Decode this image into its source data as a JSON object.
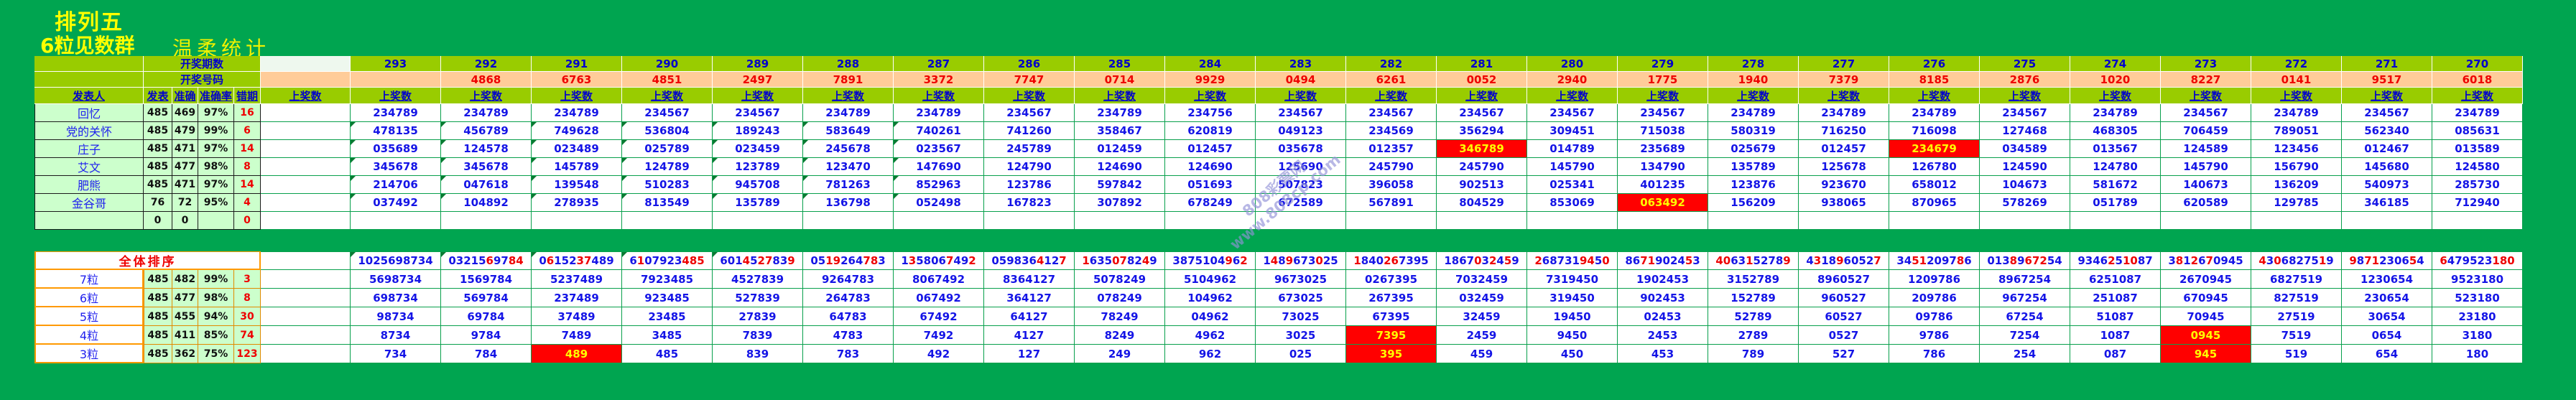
{
  "title": {
    "line1": "排列五",
    "line2": "6粒见数群",
    "subtitle": "温柔统计"
  },
  "labels": {
    "period_row": "开奖期数",
    "number_row": "开奖号码",
    "publisher": "发表人",
    "published": "发表",
    "accurate": "准确",
    "accuracy_rate": "准确率",
    "missed": "错期",
    "win_numbers": "上奖数",
    "overall": "全体排序"
  },
  "periods": [
    "293",
    "292",
    "291",
    "290",
    "289",
    "288",
    "287",
    "286",
    "285",
    "284",
    "283",
    "282",
    "281",
    "280",
    "279",
    "278",
    "277",
    "276",
    "275",
    "274",
    "273",
    "272",
    "271",
    "270"
  ],
  "draw_numbers": [
    "",
    "4868",
    "6763",
    "4851",
    "2497",
    "7891",
    "3372",
    "7747",
    "0714",
    "9929",
    "0494",
    "6261",
    "0052",
    "2940",
    "1775",
    "1940",
    "7379",
    "8185",
    "2876",
    "1020",
    "8227",
    "0141",
    "9517",
    "6018"
  ],
  "publishers": [
    {
      "name": "回忆",
      "published": "485",
      "accurate": "469",
      "rate": "97%",
      "missed": "16",
      "red_cols": [],
      "cells": [
        "234789",
        "234789",
        "234789",
        "234567",
        "234567",
        "234789",
        "234789",
        "234567",
        "234789",
        "234756",
        "234567",
        "234567",
        "234567",
        "234567",
        "234567",
        "234789",
        "234789",
        "234789",
        "234567",
        "234789",
        "234567",
        "234789",
        "234567",
        "234789"
      ]
    },
    {
      "name": "党的关怀",
      "published": "485",
      "accurate": "479",
      "rate": "99%",
      "missed": "6",
      "red_cols": [],
      "cells": [
        "478135",
        "456789",
        "749628",
        "536804",
        "189243",
        "583649",
        "740261",
        "741260",
        "358467",
        "620819",
        "049123",
        "234569",
        "356294",
        "309451",
        "715038",
        "580319",
        "716250",
        "716098",
        "127468",
        "468305",
        "706459",
        "789051",
        "562340",
        "085631"
      ]
    },
    {
      "name": "庄子",
      "published": "485",
      "accurate": "471",
      "rate": "97%",
      "missed": "14",
      "red_cols": [
        "281",
        "276"
      ],
      "cells": [
        "035689",
        "124578",
        "023489",
        "025789",
        "023459",
        "245678",
        "023567",
        "245789",
        "012459",
        "012457",
        "035678",
        "012357",
        "346789",
        "014789",
        "235689",
        "025679",
        "012457",
        "234679",
        "034589",
        "013567",
        "124589",
        "123456",
        "012467",
        "013589"
      ]
    },
    {
      "name": "艾文",
      "published": "485",
      "accurate": "477",
      "rate": "98%",
      "missed": "8",
      "red_cols": [],
      "cells": [
        "345678",
        "345678",
        "145789",
        "124789",
        "123789",
        "123470",
        "147690",
        "124790",
        "124690",
        "124690",
        "125690",
        "245790",
        "245790",
        "145790",
        "134790",
        "135789",
        "125678",
        "126780",
        "124590",
        "124780",
        "145790",
        "156790",
        "145680",
        "124580"
      ]
    },
    {
      "name": "肥熊",
      "published": "485",
      "accurate": "471",
      "rate": "97%",
      "missed": "14",
      "red_cols": [],
      "cells": [
        "214706",
        "047618",
        "139548",
        "510283",
        "945708",
        "781263",
        "852963",
        "123786",
        "597842",
        "051693",
        "507823",
        "396058",
        "902513",
        "025341",
        "401235",
        "123876",
        "923670",
        "658012",
        "104673",
        "581672",
        "140673",
        "136209",
        "540973",
        "285730"
      ]
    },
    {
      "name": "金谷哥",
      "published": "76",
      "accurate": "72",
      "rate": "95%",
      "missed": "4",
      "red_cols": [
        "279"
      ],
      "cells": [
        "037492",
        "104892",
        "278935",
        "813549",
        "135789",
        "136798",
        "052498",
        "167823",
        "307892",
        "678249",
        "672589",
        "567891",
        "804529",
        "853069",
        "063492",
        "156209",
        "938065",
        "870965",
        "578269",
        "051789",
        "620589",
        "129785",
        "346185",
        "712940"
      ]
    }
  ],
  "blank_row": {
    "name": "",
    "published": "0",
    "accurate": "0",
    "rate": "",
    "missed": "0"
  },
  "overall_row": {
    "cells": [
      "1025698734",
      "0321569784",
      "0615237489",
      "6107923485",
      "6014527839",
      "0519264783",
      "1358067492",
      "0598364127",
      "1635078249",
      "3875104962",
      "1489673025",
      "1840267395",
      "1867032459",
      "2687319450",
      "8671902453",
      "4063152789",
      "4318960527",
      "3451209786",
      "0138967254",
      "9346251087",
      "3812670945",
      "4306827519",
      "9871230654",
      "6479523180"
    ]
  },
  "particle_rows": [
    {
      "name": "7粒",
      "published": "485",
      "accurate": "482",
      "rate": "99%",
      "missed": "3",
      "red_cols": [],
      "cells": [
        "5698734",
        "1569784",
        "5237489",
        "7923485",
        "4527839",
        "9264783",
        "8067492",
        "8364127",
        "5078249",
        "5104962",
        "9673025",
        "0267395",
        "7032459",
        "7319450",
        "1902453",
        "3152789",
        "8960527",
        "1209786",
        "8967254",
        "6251087",
        "2670945",
        "6827519",
        "1230654",
        "9523180"
      ]
    },
    {
      "name": "6粒",
      "published": "485",
      "accurate": "477",
      "rate": "98%",
      "missed": "8",
      "red_cols": [],
      "cells": [
        "698734",
        "569784",
        "237489",
        "923485",
        "527839",
        "264783",
        "067492",
        "364127",
        "078249",
        "104962",
        "673025",
        "267395",
        "032459",
        "319450",
        "902453",
        "152789",
        "960527",
        "209786",
        "967254",
        "251087",
        "670945",
        "827519",
        "230654",
        "523180"
      ]
    },
    {
      "name": "5粒",
      "published": "485",
      "accurate": "455",
      "rate": "94%",
      "missed": "30",
      "red_cols": [],
      "cells": [
        "98734",
        "69784",
        "37489",
        "23485",
        "27839",
        "64783",
        "67492",
        "64127",
        "78249",
        "04962",
        "73025",
        "67395",
        "32459",
        "19450",
        "02453",
        "52789",
        "60527",
        "09786",
        "67254",
        "51087",
        "70945",
        "27519",
        "30654",
        "23180"
      ]
    },
    {
      "name": "4粒",
      "published": "485",
      "accurate": "411",
      "rate": "85%",
      "missed": "74",
      "red_cols": [
        "282",
        "273"
      ],
      "cells": [
        "8734",
        "9784",
        "7489",
        "3485",
        "7839",
        "4783",
        "7492",
        "4127",
        "8249",
        "4962",
        "3025",
        "7395",
        "2459",
        "9450",
        "2453",
        "2789",
        "0527",
        "9786",
        "7254",
        "1087",
        "0945",
        "7519",
        "0654",
        "3180"
      ]
    },
    {
      "name": "3粒",
      "published": "485",
      "accurate": "362",
      "rate": "75%",
      "missed": "123",
      "red_cols": [
        "291",
        "282",
        "273"
      ],
      "cells": [
        "734",
        "784",
        "489",
        "485",
        "839",
        "783",
        "492",
        "127",
        "249",
        "962",
        "025",
        "395",
        "459",
        "450",
        "453",
        "789",
        "527",
        "786",
        "254",
        "087",
        "945",
        "519",
        "654",
        "180"
      ]
    }
  ],
  "watermark": {
    "line1": "808彩票网",
    "line2": "www.808cp.com"
  },
  "colors": {
    "page_bg": "#00a550",
    "header_bg": "#99cc00",
    "draw_row_bg": "#ffcc99",
    "stat_bg": "#ccffcc",
    "cell_text": "#1414e6",
    "draw_text": "#ee0000",
    "alert_bg": "#ff0000",
    "alert_text": "#ffff00",
    "section_border": "#ff9900",
    "title_text": "#ffff00"
  }
}
